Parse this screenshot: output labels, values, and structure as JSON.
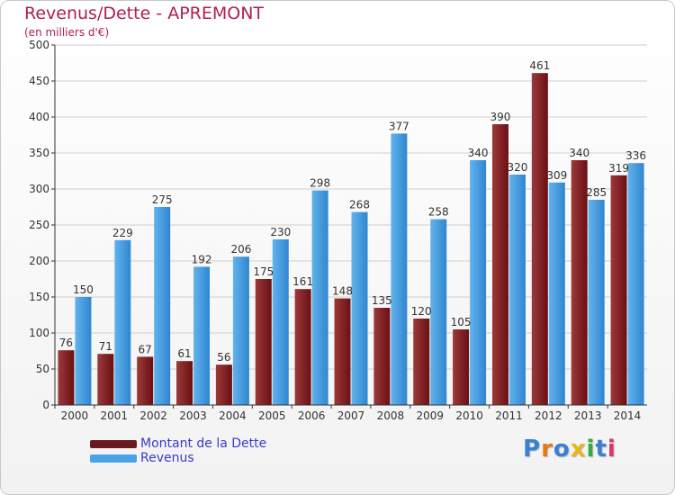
{
  "page": {
    "title": "Revenus/Dette - APREMONT",
    "subtitle": "(en milliers d'€)"
  },
  "colors": {
    "dette": "#6b0f14",
    "dette_light": "#9b3a3a",
    "revenus": "#2f86d0",
    "revenus_light": "#62b3ec",
    "grid": "#d0d0d0",
    "axis": "#333333"
  },
  "legend": {
    "items": [
      {
        "label": "Montant de la Dette",
        "color": "#6b1a1f"
      },
      {
        "label": "Revenus",
        "color": "#4aa3e8"
      }
    ]
  },
  "logo": {
    "text": "Proxiti",
    "letter_colors": [
      "#3a7fd4",
      "#e57a17",
      "#3a7fd4",
      "#e5b817",
      "#3aa84a",
      "#3a7fd4",
      "#d43a6a"
    ]
  },
  "chart_data": {
    "type": "bar",
    "title": "Revenus/Dette - APREMONT",
    "subtitle": "(en milliers d'€)",
    "xlabel": "",
    "ylabel": "",
    "ylim": [
      0,
      500
    ],
    "yticks": [
      0,
      50,
      100,
      150,
      200,
      250,
      300,
      350,
      400,
      450,
      500
    ],
    "grid": true,
    "legend_position": "bottom-left",
    "categories": [
      "2000",
      "2001",
      "2002",
      "2003",
      "2004",
      "2005",
      "2006",
      "2007",
      "2008",
      "2009",
      "2010",
      "2011",
      "2012",
      "2013",
      "2014"
    ],
    "series": [
      {
        "name": "Montant de la Dette",
        "values": [
          76,
          71,
          67,
          61,
          56,
          175,
          161,
          148,
          135,
          120,
          105,
          390,
          461,
          340,
          319
        ]
      },
      {
        "name": "Revenus",
        "values": [
          150,
          229,
          275,
          192,
          206,
          230,
          298,
          268,
          377,
          258,
          340,
          320,
          309,
          285,
          336
        ]
      }
    ]
  }
}
